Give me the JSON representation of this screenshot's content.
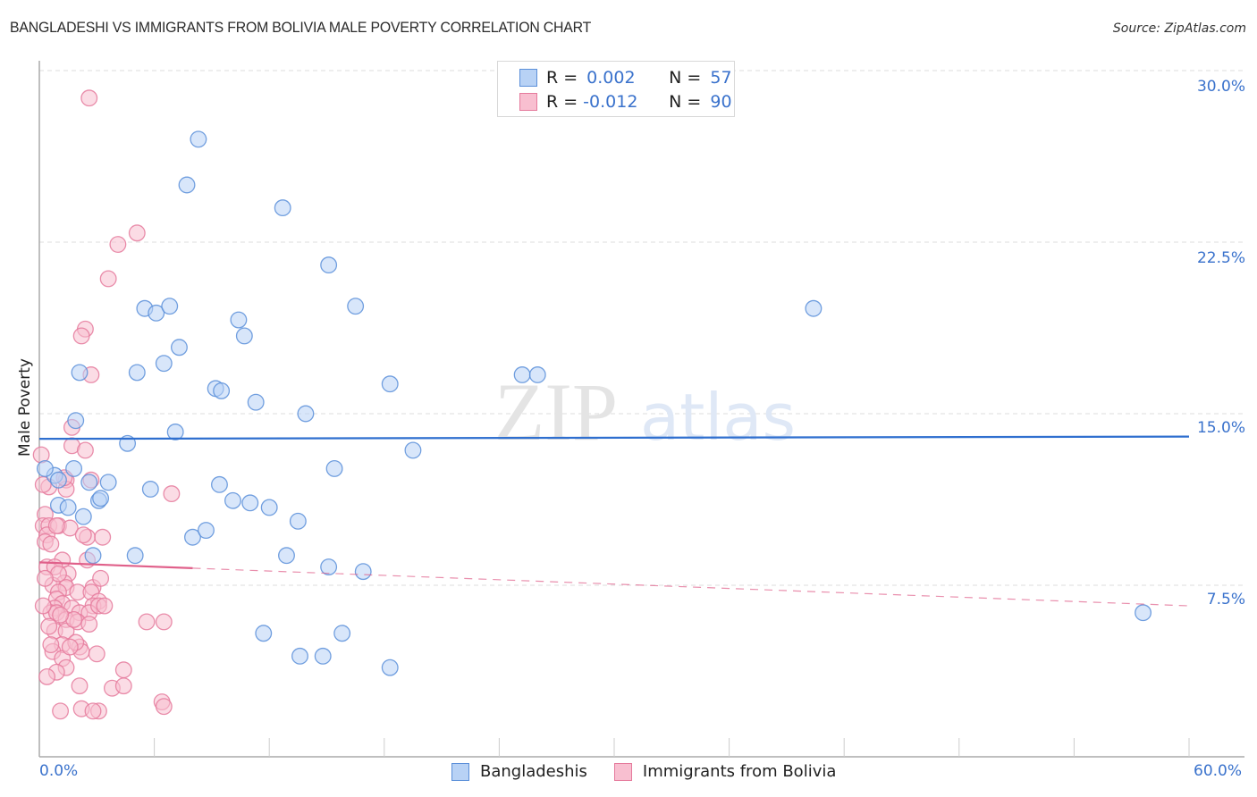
{
  "header": {
    "title": "BANGLADESHI VS IMMIGRANTS FROM BOLIVIA MALE POVERTY CORRELATION CHART",
    "source": "Source: ZipAtlas.com"
  },
  "legend": {
    "rows": [
      {
        "r_label": "R =",
        "r_value": "0.002",
        "n_label": "N =",
        "n_value": "57"
      },
      {
        "r_label": "R =",
        "r_value": "-0.012",
        "n_label": "N =",
        "n_value": "90"
      }
    ],
    "bottom": [
      {
        "label": "Bangladeshis"
      },
      {
        "label": "Immigrants from Bolivia"
      }
    ]
  },
  "axes": {
    "ylabel": "Male Poverty",
    "yticks": [
      "30.0%",
      "22.5%",
      "15.0%",
      "7.5%"
    ],
    "xticks": [
      "0.0%",
      "60.0%"
    ]
  },
  "watermark": {
    "zip": "ZIP",
    "atlas": "atlas"
  },
  "colors": {
    "blue_fill": "#b8d2f5",
    "blue_stroke": "#5b8fd9",
    "blue_line": "#2f6fcf",
    "pink_fill": "#f8bfd0",
    "pink_stroke": "#e57a9c",
    "pink_line": "#e0608a",
    "tick_text": "#3a72cc",
    "grid": "#dddddd"
  },
  "chart_data": {
    "type": "scatter",
    "title": "BANGLADESHI VS IMMIGRANTS FROM BOLIVIA MALE POVERTY CORRELATION CHART",
    "xlabel": "",
    "ylabel": "Male Poverty",
    "xlim": [
      0,
      60
    ],
    "ylim": [
      0,
      31
    ],
    "y_gridlines": [
      7.5,
      15.0,
      22.5,
      30.0
    ],
    "legend_position": "top-center",
    "series": [
      {
        "name": "Bangladeshis",
        "R": 0.002,
        "N": 57,
        "trend": {
          "x": [
            0,
            60
          ],
          "y": [
            13.9,
            14.0
          ],
          "style": "solid"
        },
        "points": [
          [
            8.3,
            27.0
          ],
          [
            7.7,
            25.0
          ],
          [
            12.7,
            24.0
          ],
          [
            15.1,
            21.5
          ],
          [
            5.5,
            19.6
          ],
          [
            6.1,
            19.4
          ],
          [
            6.8,
            19.7
          ],
          [
            10.4,
            19.1
          ],
          [
            10.7,
            18.4
          ],
          [
            16.5,
            19.7
          ],
          [
            7.3,
            17.9
          ],
          [
            2.1,
            16.8
          ],
          [
            5.1,
            16.8
          ],
          [
            6.5,
            17.2
          ],
          [
            9.2,
            16.1
          ],
          [
            9.5,
            16.0
          ],
          [
            11.3,
            15.5
          ],
          [
            13.9,
            15.0
          ],
          [
            18.3,
            16.3
          ],
          [
            25.2,
            16.7
          ],
          [
            26.0,
            16.7
          ],
          [
            1.9,
            14.7
          ],
          [
            4.6,
            13.7
          ],
          [
            7.1,
            14.2
          ],
          [
            1.8,
            12.6
          ],
          [
            0.8,
            12.3
          ],
          [
            1.0,
            12.1
          ],
          [
            2.6,
            12.0
          ],
          [
            3.6,
            12.0
          ],
          [
            5.8,
            11.7
          ],
          [
            9.4,
            11.9
          ],
          [
            1.0,
            11.0
          ],
          [
            1.5,
            10.9
          ],
          [
            3.1,
            11.2
          ],
          [
            3.2,
            11.3
          ],
          [
            10.1,
            11.2
          ],
          [
            11.0,
            11.1
          ],
          [
            12.0,
            10.9
          ],
          [
            13.5,
            10.3
          ],
          [
            15.4,
            12.6
          ],
          [
            19.5,
            13.4
          ],
          [
            8.0,
            9.6
          ],
          [
            8.7,
            9.9
          ],
          [
            2.8,
            8.8
          ],
          [
            5.0,
            8.8
          ],
          [
            12.9,
            8.8
          ],
          [
            15.1,
            8.3
          ],
          [
            16.9,
            8.1
          ],
          [
            11.7,
            5.4
          ],
          [
            13.6,
            4.4
          ],
          [
            14.8,
            4.4
          ],
          [
            15.8,
            5.4
          ],
          [
            18.3,
            3.9
          ],
          [
            40.4,
            19.6
          ],
          [
            57.6,
            6.3
          ],
          [
            0.3,
            12.6
          ],
          [
            2.3,
            10.5
          ]
        ]
      },
      {
        "name": "Immigrants from Bolivia",
        "R": -0.012,
        "N": 90,
        "trend": {
          "x": [
            0,
            60
          ],
          "y": [
            8.5,
            6.6
          ],
          "style": "solid to 8%, dashed after"
        },
        "points": [
          [
            2.6,
            28.8
          ],
          [
            5.1,
            22.9
          ],
          [
            4.1,
            22.4
          ],
          [
            3.6,
            20.9
          ],
          [
            2.4,
            18.7
          ],
          [
            2.2,
            18.4
          ],
          [
            2.7,
            16.7
          ],
          [
            1.7,
            14.4
          ],
          [
            1.7,
            13.6
          ],
          [
            2.4,
            13.4
          ],
          [
            0.1,
            13.2
          ],
          [
            2.7,
            12.1
          ],
          [
            1.4,
            12.1
          ],
          [
            1.4,
            11.7
          ],
          [
            0.5,
            11.8
          ],
          [
            6.9,
            11.5
          ],
          [
            0.3,
            10.6
          ],
          [
            0.2,
            10.1
          ],
          [
            0.5,
            10.1
          ],
          [
            1.0,
            10.1
          ],
          [
            0.4,
            9.7
          ],
          [
            0.3,
            9.4
          ],
          [
            0.6,
            9.3
          ],
          [
            2.5,
            9.6
          ],
          [
            3.3,
            9.6
          ],
          [
            1.2,
            8.6
          ],
          [
            2.5,
            8.6
          ],
          [
            0.4,
            8.3
          ],
          [
            0.8,
            8.3
          ],
          [
            1.5,
            8.0
          ],
          [
            1.3,
            7.6
          ],
          [
            0.7,
            7.5
          ],
          [
            1.4,
            7.4
          ],
          [
            1.0,
            7.2
          ],
          [
            2.0,
            7.2
          ],
          [
            2.8,
            7.4
          ],
          [
            2.7,
            7.2
          ],
          [
            0.9,
            6.9
          ],
          [
            1.2,
            6.7
          ],
          [
            3.1,
            6.8
          ],
          [
            2.8,
            6.6
          ],
          [
            0.8,
            6.5
          ],
          [
            1.7,
            6.5
          ],
          [
            2.1,
            6.3
          ],
          [
            0.6,
            6.3
          ],
          [
            0.9,
            6.3
          ],
          [
            1.4,
            6.0
          ],
          [
            2.6,
            6.3
          ],
          [
            3.1,
            6.6
          ],
          [
            0.8,
            5.5
          ],
          [
            1.4,
            5.5
          ],
          [
            2.0,
            5.9
          ],
          [
            2.6,
            5.8
          ],
          [
            5.6,
            5.9
          ],
          [
            6.5,
            5.9
          ],
          [
            1.2,
            4.9
          ],
          [
            2.1,
            4.8
          ],
          [
            0.7,
            4.6
          ],
          [
            1.2,
            4.3
          ],
          [
            2.2,
            4.6
          ],
          [
            3.0,
            4.5
          ],
          [
            1.4,
            3.9
          ],
          [
            0.9,
            3.7
          ],
          [
            4.4,
            3.8
          ],
          [
            2.1,
            3.1
          ],
          [
            3.8,
            3.0
          ],
          [
            4.4,
            3.1
          ],
          [
            1.1,
            2.0
          ],
          [
            2.2,
            2.1
          ],
          [
            3.1,
            2.0
          ],
          [
            6.4,
            2.4
          ],
          [
            6.5,
            2.2
          ],
          [
            0.2,
            11.9
          ],
          [
            1.0,
            8.0
          ],
          [
            0.3,
            7.8
          ],
          [
            1.8,
            6.0
          ],
          [
            3.4,
            6.6
          ],
          [
            0.5,
            5.7
          ],
          [
            1.6,
            10.0
          ],
          [
            2.3,
            9.7
          ],
          [
            0.2,
            6.6
          ],
          [
            1.1,
            6.2
          ],
          [
            3.2,
            7.8
          ],
          [
            0.9,
            10.1
          ],
          [
            1.9,
            5.0
          ],
          [
            1.6,
            4.8
          ],
          [
            0.6,
            4.9
          ],
          [
            0.4,
            3.5
          ],
          [
            2.8,
            2.0
          ],
          [
            1.3,
            12.2
          ]
        ]
      }
    ]
  }
}
